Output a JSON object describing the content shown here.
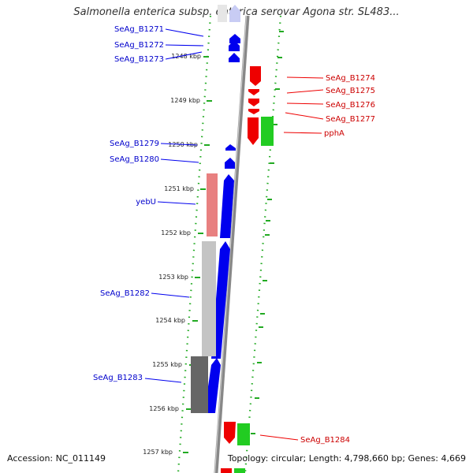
{
  "title": "Salmonella enterica subsp. enterica serovar Agona str. SL483...",
  "footer": {
    "accession": "Accession: NC_011149",
    "summary": "Topology: circular; Length: 4,798,660 bp; Genes: 4,669"
  },
  "colors": {
    "reverse_strand": "#0000ee",
    "forward_strand": "#ee0000",
    "gc_track": "#22aa22",
    "backbone": "#888888"
  },
  "kbp_ticks": [
    "1248 kbp",
    "1249 kbp",
    "1250 kbp",
    "1251 kbp",
    "1252 kbp",
    "1253 kbp",
    "1254 kbp",
    "1255 kbp",
    "1256 kbp",
    "1257 kbp"
  ],
  "left_labels": [
    "SeAg_B1271",
    "SeAg_B1272",
    "SeAg_B1273",
    "SeAg_B1279",
    "SeAg_B1280",
    "yebU",
    "SeAg_B1282",
    "SeAg_B1283"
  ],
  "right_labels": [
    "SeAg_B1274",
    "SeAg_B1275",
    "SeAg_B1276",
    "SeAg_B1277",
    "pphA",
    "SeAg_B1284"
  ]
}
